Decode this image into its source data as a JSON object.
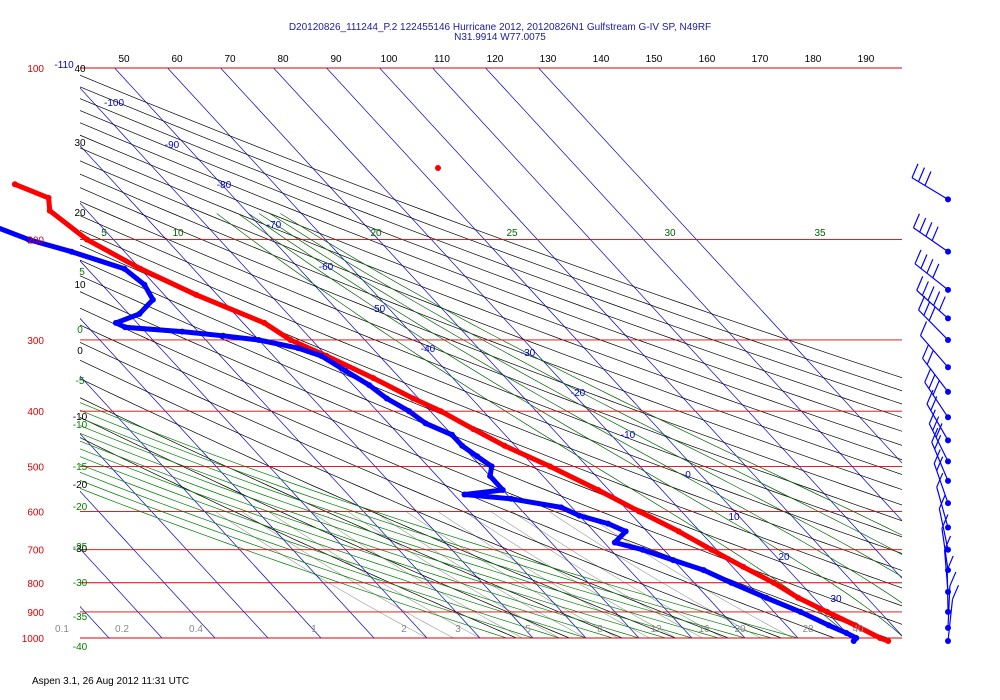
{
  "header": {
    "line1": "D20120826_111244_P.2 122455146 Hurricane 2012, 20120826N1 Gulfstream G-IV SP, N49RF",
    "line2": "N31.9914 W77.0075"
  },
  "footer": {
    "text": "Aspen 3.1, 26 Aug 2012  11:31 UTC"
  },
  "chart_data": {
    "type": "line",
    "title": "D20120826_111244_P.2 122455146 Hurricane 2012, 20120826N1 Gulfstream G-IV SP, N49RF",
    "subtitle": "N31.9914 W77.0075",
    "pressure_levels": [
      100,
      200,
      300,
      400,
      500,
      600,
      700,
      800,
      900,
      1000
    ],
    "pressure_range": [
      1000,
      100
    ],
    "top_tick_labels": [
      50,
      60,
      70,
      80,
      90,
      100,
      110,
      120,
      130,
      140,
      150,
      160,
      170,
      180,
      190
    ],
    "isotherm_labels": [
      {
        "t": -110,
        "text": "-110"
      },
      {
        "t": -100,
        "text": "-100"
      },
      {
        "t": -90,
        "text": "-90"
      },
      {
        "t": -80,
        "text": "-80"
      },
      {
        "t": -70,
        "text": "-70"
      },
      {
        "t": -60,
        "text": "-60"
      },
      {
        "t": -50,
        "text": "-50"
      },
      {
        "t": -40,
        "text": "-40"
      },
      {
        "t": -30,
        "text": "-30"
      },
      {
        "t": -20,
        "text": "-20"
      },
      {
        "t": -10,
        "text": "-10"
      },
      {
        "t": 0,
        "text": "0"
      },
      {
        "t": 10,
        "text": "10"
      },
      {
        "t": 20,
        "text": "20"
      },
      {
        "t": 30,
        "text": "30"
      }
    ],
    "dry_adiabat_labels": [
      40,
      30,
      20,
      10,
      0,
      -10,
      -20,
      -30
    ],
    "moist_adiabat_labels": [
      5,
      0,
      -5,
      -10,
      -15,
      -20,
      -25,
      -30,
      -35,
      -40
    ],
    "mixing_ratio_labels": [
      "0.1",
      "0.2",
      "0.4",
      "1",
      "2",
      "3",
      "5",
      "8",
      "12",
      "16",
      "20",
      "28",
      "40"
    ],
    "theta_e_labels": [
      5,
      10,
      20,
      25,
      30,
      35
    ],
    "series": [
      {
        "name": "Temperature",
        "color": "#ff0000",
        "points": [
          {
            "p": 160,
            "t": -59
          },
          {
            "p": 169,
            "t": -55
          },
          {
            "p": 178,
            "t": -57
          },
          {
            "p": 200,
            "t": -55
          },
          {
            "p": 225,
            "t": -50
          },
          {
            "p": 250,
            "t": -44
          },
          {
            "p": 280,
            "t": -36
          },
          {
            "p": 300,
            "t": -34
          },
          {
            "p": 320,
            "t": -30
          },
          {
            "p": 350,
            "t": -25
          },
          {
            "p": 380,
            "t": -21
          },
          {
            "p": 400,
            "t": -18
          },
          {
            "p": 430,
            "t": -15
          },
          {
            "p": 460,
            "t": -12
          },
          {
            "p": 500,
            "t": -7
          },
          {
            "p": 550,
            "t": -2
          },
          {
            "p": 600,
            "t": 2
          },
          {
            "p": 650,
            "t": 6
          },
          {
            "p": 700,
            "t": 9
          },
          {
            "p": 750,
            "t": 12
          },
          {
            "p": 800,
            "t": 15
          },
          {
            "p": 850,
            "t": 17
          },
          {
            "p": 900,
            "t": 20
          },
          {
            "p": 950,
            "t": 23
          },
          {
            "p": 1000,
            "t": 25.5
          },
          {
            "p": 1012,
            "t": 26.5
          }
        ]
      },
      {
        "name": "Dew point",
        "color": "#0000ff",
        "points": [
          {
            "p": 190,
            "t": -70
          },
          {
            "p": 200,
            "t": -66
          },
          {
            "p": 210,
            "t": -60
          },
          {
            "p": 225,
            "t": -53
          },
          {
            "p": 240,
            "t": -52
          },
          {
            "p": 255,
            "t": -53
          },
          {
            "p": 270,
            "t": -58
          },
          {
            "p": 280,
            "t": -64
          },
          {
            "p": 285,
            "t": -63
          },
          {
            "p": 290,
            "t": -53
          },
          {
            "p": 295,
            "t": -46
          },
          {
            "p": 300,
            "t": -40
          },
          {
            "p": 310,
            "t": -34
          },
          {
            "p": 320,
            "t": -31
          },
          {
            "p": 340,
            "t": -29
          },
          {
            "p": 360,
            "t": -27
          },
          {
            "p": 380,
            "t": -26
          },
          {
            "p": 400,
            "t": -24
          },
          {
            "p": 420,
            "t": -23
          },
          {
            "p": 440,
            "t": -20
          },
          {
            "p": 460,
            "t": -20
          },
          {
            "p": 480,
            "t": -19
          },
          {
            "p": 500,
            "t": -18
          },
          {
            "p": 520,
            "t": -20
          },
          {
            "p": 550,
            "t": -20
          },
          {
            "p": 560,
            "t": -28
          },
          {
            "p": 570,
            "t": -20
          },
          {
            "p": 590,
            "t": -12
          },
          {
            "p": 610,
            "t": -10
          },
          {
            "p": 630,
            "t": -6
          },
          {
            "p": 650,
            "t": -4
          },
          {
            "p": 680,
            "t": -8
          },
          {
            "p": 700,
            "t": -4
          },
          {
            "p": 730,
            "t": 0
          },
          {
            "p": 760,
            "t": 4
          },
          {
            "p": 800,
            "t": 7
          },
          {
            "p": 850,
            "t": 11
          },
          {
            "p": 900,
            "t": 15
          },
          {
            "p": 950,
            "t": 18
          },
          {
            "p": 980,
            "t": 20
          },
          {
            "p": 1000,
            "t": 21
          },
          {
            "p": 1012,
            "t": 20
          }
        ]
      }
    ],
    "wind_barbs": [
      {
        "p": 170,
        "speed": 25
      },
      {
        "p": 210,
        "speed": 35
      },
      {
        "p": 245,
        "speed": 40
      },
      {
        "p": 275,
        "speed": 45
      },
      {
        "p": 300,
        "speed": 30
      },
      {
        "p": 335,
        "speed": 10
      },
      {
        "p": 370,
        "speed": 20
      },
      {
        "p": 410,
        "speed": 25
      },
      {
        "p": 450,
        "speed": 20
      },
      {
        "p": 490,
        "speed": 25
      },
      {
        "p": 530,
        "speed": 20
      },
      {
        "p": 580,
        "speed": 15
      },
      {
        "p": 640,
        "speed": 10
      },
      {
        "p": 700,
        "speed": 10
      },
      {
        "p": 760,
        "speed": 5
      },
      {
        "p": 830,
        "speed": 5
      },
      {
        "p": 900,
        "speed": 10
      },
      {
        "p": 960,
        "speed": 5
      },
      {
        "p": 1012,
        "speed": 5
      }
    ],
    "grid": true,
    "colors": {
      "isobar": "#dd0000",
      "isotherm": "#0000cc",
      "dry_adiabat": "#000000",
      "moist_adiabat": "#008000",
      "mixing_ratio": "#999999",
      "theta_e": "#006400"
    }
  }
}
